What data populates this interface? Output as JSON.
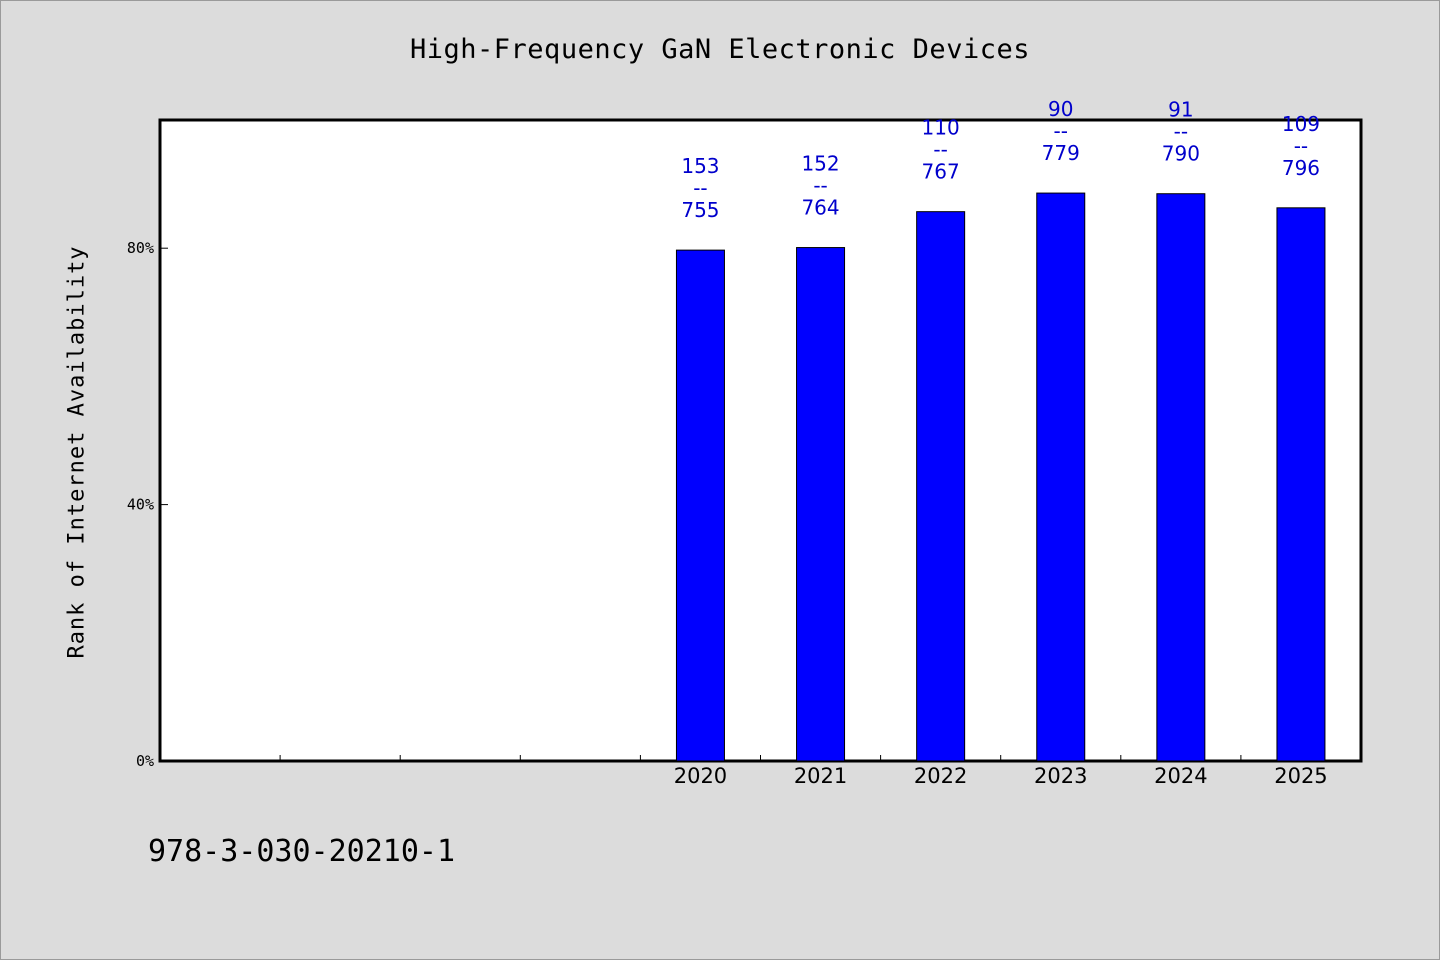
{
  "chart_data": {
    "type": "bar",
    "title": "High-Frequency GaN Electronic Devices",
    "ylabel": "Rank of Internet Availability",
    "xlabel": "",
    "ylim": [
      0,
      100
    ],
    "yticks": [
      {
        "value": 0,
        "label": "0%"
      },
      {
        "value": 40,
        "label": "40%"
      },
      {
        "value": 80,
        "label": "80%"
      }
    ],
    "slots": 10,
    "categories": [
      "2020",
      "2021",
      "2022",
      "2023",
      "2024",
      "2025"
    ],
    "first_category_slot": 4,
    "values": [
      79.7,
      80.1,
      85.7,
      88.6,
      88.5,
      86.3
    ],
    "bar_color": "#0000ff",
    "label_color": "#0000cc",
    "data_labels": [
      {
        "top": "153",
        "mid": "--",
        "bottom": "755"
      },
      {
        "top": "152",
        "mid": "--",
        "bottom": "764"
      },
      {
        "top": "110",
        "mid": "--",
        "bottom": "767"
      },
      {
        "top": "90",
        "mid": "--",
        "bottom": "779"
      },
      {
        "top": "91",
        "mid": "--",
        "bottom": "790"
      },
      {
        "top": "109",
        "mid": "--",
        "bottom": "796"
      }
    ],
    "grid": false,
    "legend": "none"
  },
  "footer": {
    "identifier": "978-3-030-20210-1"
  }
}
